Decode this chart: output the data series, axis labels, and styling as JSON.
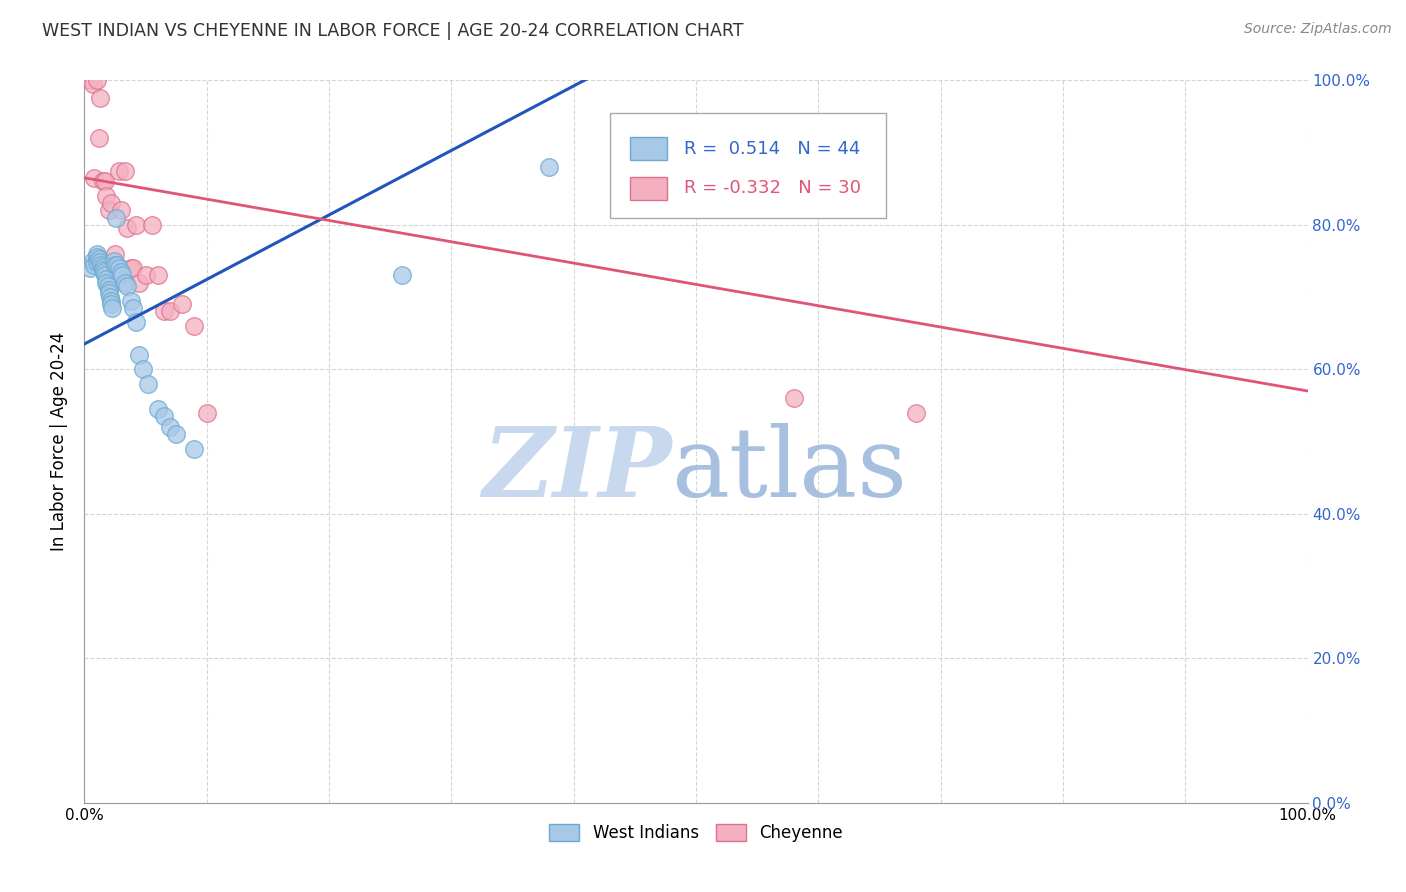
{
  "title": "WEST INDIAN VS CHEYENNE IN LABOR FORCE | AGE 20-24 CORRELATION CHART",
  "source": "Source: ZipAtlas.com",
  "ylabel": "In Labor Force | Age 20-24",
  "xlim": [
    0.0,
    1.0
  ],
  "ylim": [
    0.0,
    1.0
  ],
  "xtick_positions": [
    0.0,
    0.1,
    0.2,
    0.3,
    0.4,
    0.5,
    0.6,
    0.7,
    0.8,
    0.9,
    1.0
  ],
  "ytick_positions": [
    0.0,
    0.2,
    0.4,
    0.6,
    0.8,
    1.0
  ],
  "xtick_labels_show": {
    "0.0": "0.0%",
    "1.0": "100.0%"
  },
  "ytick_labels_right": [
    "0.0%",
    "20.0%",
    "40.0%",
    "60.0%",
    "80.0%",
    "100.0%"
  ],
  "west_indian_fill": "#A8C8E8",
  "west_indian_edge": "#6AAAD0",
  "cheyenne_fill": "#F4B0C0",
  "cheyenne_edge": "#E07090",
  "blue_line_color": "#2255BB",
  "pink_line_color": "#E05575",
  "R_blue": 0.514,
  "N_blue": 44,
  "R_pink": -0.332,
  "N_pink": 30,
  "blue_line_x0": 0.0,
  "blue_line_y0": 0.635,
  "blue_line_x1": 0.42,
  "blue_line_y1": 1.01,
  "pink_line_x0": 0.0,
  "pink_line_y0": 0.865,
  "pink_line_x1": 1.0,
  "pink_line_y1": 0.57,
  "west_indians_x": [
    0.005,
    0.007,
    0.008,
    0.01,
    0.01,
    0.01,
    0.012,
    0.013,
    0.014,
    0.015,
    0.015,
    0.016,
    0.017,
    0.018,
    0.018,
    0.019,
    0.02,
    0.02,
    0.021,
    0.022,
    0.022,
    0.023,
    0.024,
    0.025,
    0.026,
    0.027,
    0.028,
    0.03,
    0.031,
    0.033,
    0.035,
    0.038,
    0.04,
    0.042,
    0.045,
    0.048,
    0.052,
    0.06,
    0.065,
    0.07,
    0.075,
    0.09,
    0.26,
    0.38
  ],
  "west_indians_y": [
    0.74,
    0.75,
    0.745,
    0.76,
    0.755,
    0.748,
    0.752,
    0.748,
    0.745,
    0.742,
    0.738,
    0.735,
    0.73,
    0.725,
    0.72,
    0.715,
    0.71,
    0.705,
    0.7,
    0.695,
    0.69,
    0.685,
    0.75,
    0.745,
    0.81,
    0.745,
    0.74,
    0.735,
    0.73,
    0.72,
    0.715,
    0.695,
    0.685,
    0.665,
    0.62,
    0.6,
    0.58,
    0.545,
    0.535,
    0.52,
    0.51,
    0.49,
    0.73,
    0.88
  ],
  "cheyenne_x": [
    0.005,
    0.007,
    0.008,
    0.01,
    0.012,
    0.013,
    0.015,
    0.017,
    0.018,
    0.02,
    0.022,
    0.025,
    0.028,
    0.03,
    0.033,
    0.035,
    0.038,
    0.04,
    0.042,
    0.045,
    0.05,
    0.055,
    0.06,
    0.065,
    0.07,
    0.08,
    0.09,
    0.1,
    0.58,
    0.68
  ],
  "cheyenne_y": [
    1.0,
    0.995,
    0.865,
    1.0,
    0.92,
    0.975,
    0.86,
    0.86,
    0.84,
    0.82,
    0.83,
    0.76,
    0.875,
    0.82,
    0.875,
    0.795,
    0.74,
    0.74,
    0.8,
    0.72,
    0.73,
    0.8,
    0.73,
    0.68,
    0.68,
    0.69,
    0.66,
    0.54,
    0.56,
    0.54
  ],
  "bg_color": "#ffffff",
  "grid_color": "#cccccc",
  "axis_blue_color": "#3366CC",
  "title_color": "#333333",
  "source_color": "#888888",
  "watermark_zip_color": "#C8D8EE",
  "watermark_atlas_color": "#A8C0E0"
}
